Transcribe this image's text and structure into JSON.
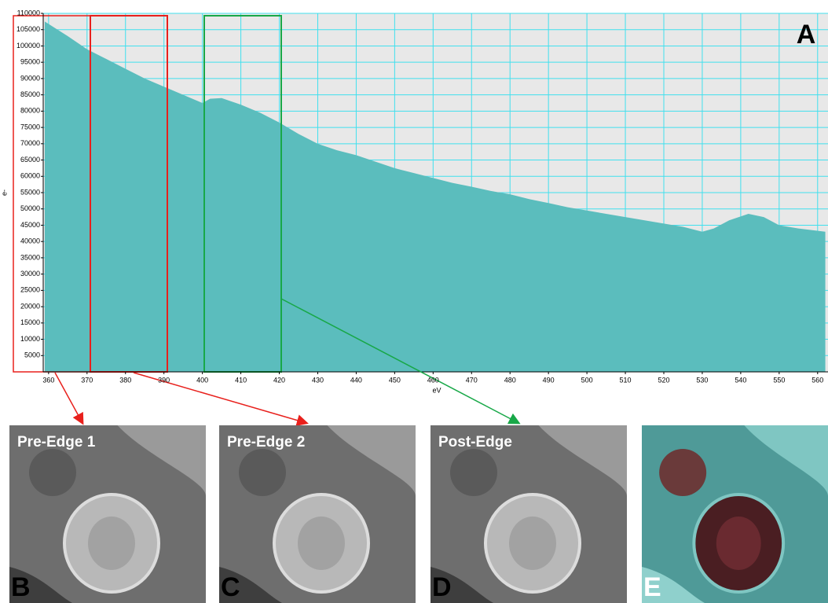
{
  "chart_data": {
    "type": "area",
    "x": [
      359,
      365,
      370,
      375,
      380,
      385,
      390,
      395,
      400,
      402,
      405,
      410,
      415,
      420,
      425,
      430,
      435,
      440,
      445,
      450,
      455,
      460,
      465,
      470,
      475,
      480,
      485,
      490,
      495,
      500,
      505,
      510,
      515,
      520,
      525,
      530,
      533,
      537,
      542,
      546,
      550,
      555,
      562
    ],
    "values": [
      107500,
      103000,
      99000,
      96000,
      93000,
      90000,
      87500,
      85000,
      82500,
      83800,
      84000,
      82000,
      79500,
      76500,
      73000,
      70000,
      68000,
      66500,
      64500,
      62500,
      61000,
      59500,
      58000,
      56800,
      55500,
      54500,
      53000,
      51800,
      50500,
      49500,
      48500,
      47500,
      46500,
      45500,
      44500,
      43000,
      44000,
      46500,
      48500,
      47500,
      45000,
      44000,
      43000
    ],
    "color": "#5bbdbd",
    "xlim": [
      358.6,
      562.7
    ],
    "ylim": [
      0,
      110000
    ],
    "xticks": [
      360,
      370,
      380,
      390,
      400,
      410,
      420,
      430,
      440,
      450,
      460,
      470,
      480,
      490,
      500,
      510,
      520,
      530,
      540,
      550,
      560
    ],
    "yticks": [
      5000,
      10000,
      15000,
      20000,
      25000,
      30000,
      35000,
      40000,
      45000,
      50000,
      55000,
      60000,
      65000,
      70000,
      75000,
      80000,
      85000,
      90000,
      95000,
      100000,
      105000,
      110000
    ],
    "xlabel": "eV",
    "ylabel": "e-",
    "grid": true,
    "grid_color": "#40e0ee",
    "panel_label": "A"
  },
  "panels": [
    {
      "title": "Pre-Edge 1",
      "label": "B"
    },
    {
      "title": "Pre-Edge 2",
      "label": "C"
    },
    {
      "title": "Post-Edge",
      "label": "D"
    },
    {
      "label": "E"
    }
  ]
}
